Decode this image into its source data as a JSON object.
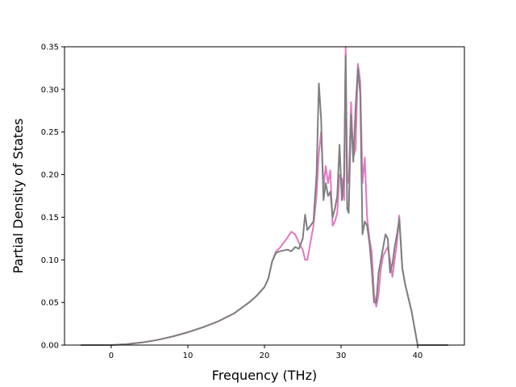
{
  "chart_data": {
    "type": "line",
    "title": "",
    "xlabel": "Frequency (THz)",
    "ylabel": "Partial Density of States",
    "xlim": [
      -6.1,
      46.1
    ],
    "ylim": [
      0.0,
      0.35
    ],
    "xticks": [
      0,
      10,
      20,
      30,
      40
    ],
    "xtick_labels": [
      "0",
      "10",
      "20",
      "30",
      "40"
    ],
    "yticks": [
      0.0,
      0.05,
      0.1,
      0.15,
      0.2,
      0.25,
      0.3,
      0.35
    ],
    "ytick_labels": [
      "0.00",
      "0.05",
      "0.10",
      "0.15",
      "0.20",
      "0.25",
      "0.30",
      "0.35"
    ],
    "grid": false,
    "legend": "none",
    "series": [
      {
        "color": "#e377c2",
        "x": [
          -4,
          0,
          2,
          4,
          6,
          8,
          10,
          12,
          14,
          16,
          18,
          19,
          20,
          20.5,
          21,
          21.5,
          22,
          22.5,
          23,
          23.5,
          24,
          24.5,
          25,
          25.3,
          25.6,
          26,
          26.4,
          26.8,
          27.1,
          27.4,
          27.7,
          28,
          28.3,
          28.6,
          28.9,
          29.2,
          29.5,
          29.8,
          30.1,
          30.4,
          30.6,
          30.8,
          31.0,
          31.3,
          31.6,
          31.9,
          32.2,
          32.5,
          32.8,
          33.1,
          33.4,
          33.7,
          34.0,
          34.3,
          34.6,
          34.9,
          35.2,
          35.5,
          35.8,
          36.1,
          36.4,
          36.7,
          37.0,
          37.3,
          37.6,
          38.0,
          38.4,
          38.8,
          39.2,
          39.6,
          40,
          41,
          44
        ],
        "y": [
          0,
          0,
          0.001,
          0.003,
          0.006,
          0.01,
          0.015,
          0.021,
          0.028,
          0.037,
          0.05,
          0.058,
          0.068,
          0.078,
          0.098,
          0.11,
          0.114,
          0.12,
          0.126,
          0.133,
          0.13,
          0.12,
          0.112,
          0.1,
          0.1,
          0.12,
          0.14,
          0.175,
          0.225,
          0.25,
          0.185,
          0.21,
          0.19,
          0.205,
          0.14,
          0.145,
          0.155,
          0.2,
          0.195,
          0.17,
          0.35,
          0.2,
          0.19,
          0.285,
          0.22,
          0.23,
          0.33,
          0.31,
          0.19,
          0.22,
          0.15,
          0.125,
          0.11,
          0.06,
          0.045,
          0.06,
          0.09,
          0.105,
          0.11,
          0.115,
          0.1,
          0.08,
          0.1,
          0.12,
          0.152,
          0.09,
          0.07,
          0.055,
          0.04,
          0.02,
          0.0,
          0.0,
          0.0
        ]
      },
      {
        "color": "#7f7f7f",
        "x": [
          -4,
          0,
          2,
          4,
          6,
          8,
          10,
          12,
          14,
          16,
          18,
          19,
          20,
          20.5,
          21,
          21.5,
          22,
          22.5,
          23,
          23.5,
          24,
          24.5,
          25,
          25.3,
          25.6,
          26,
          26.4,
          26.8,
          27.1,
          27.4,
          27.7,
          28,
          28.3,
          28.6,
          28.9,
          29.2,
          29.5,
          29.8,
          30.1,
          30.4,
          30.6,
          30.8,
          31.0,
          31.3,
          31.6,
          31.9,
          32.2,
          32.5,
          32.8,
          33.1,
          33.4,
          33.7,
          34.0,
          34.3,
          34.6,
          34.9,
          35.2,
          35.5,
          35.8,
          36.1,
          36.4,
          36.7,
          37.0,
          37.3,
          37.6,
          38.0,
          38.4,
          38.8,
          39.2,
          39.6,
          40,
          41,
          44
        ],
        "y": [
          0,
          0,
          0.001,
          0.003,
          0.006,
          0.01,
          0.015,
          0.021,
          0.028,
          0.037,
          0.05,
          0.058,
          0.068,
          0.078,
          0.098,
          0.108,
          0.11,
          0.111,
          0.112,
          0.11,
          0.115,
          0.113,
          0.125,
          0.153,
          0.135,
          0.14,
          0.145,
          0.2,
          0.307,
          0.265,
          0.17,
          0.19,
          0.175,
          0.18,
          0.15,
          0.16,
          0.175,
          0.235,
          0.17,
          0.2,
          0.34,
          0.16,
          0.155,
          0.27,
          0.215,
          0.28,
          0.325,
          0.295,
          0.13,
          0.145,
          0.14,
          0.12,
          0.09,
          0.05,
          0.05,
          0.085,
          0.1,
          0.115,
          0.13,
          0.125,
          0.085,
          0.095,
          0.115,
          0.13,
          0.148,
          0.09,
          0.07,
          0.055,
          0.04,
          0.02,
          0.0,
          0.0,
          0.0
        ]
      }
    ]
  }
}
